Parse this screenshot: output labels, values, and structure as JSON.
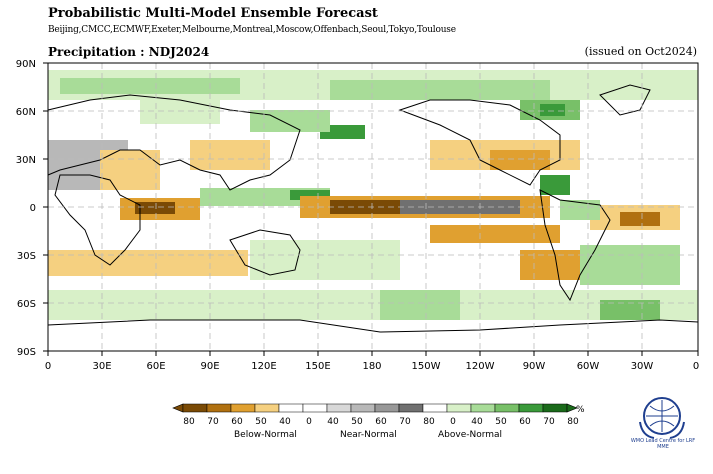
{
  "header": {
    "title": "Probabilistic Multi-Model Ensemble Forecast",
    "centres": "Beijing,CMCC,ECMWF,Exeter,Melbourne,Montreal,Moscow,Offenbach,Seoul,Tokyo,Toulouse",
    "variable_label": "Precipitation : NDJ2024",
    "issued_label": "(issued on Oct2024)"
  },
  "map": {
    "lat_labels": [
      "90N",
      "60N",
      "30N",
      "0",
      "30S",
      "60S",
      "90S"
    ],
    "lon_labels": [
      "0",
      "30E",
      "60E",
      "90E",
      "120E",
      "150E",
      "180",
      "150W",
      "120W",
      "90W",
      "60W",
      "30W",
      "0"
    ]
  },
  "legend": {
    "ticks": [
      "80",
      "70",
      "60",
      "50",
      "40",
      "0",
      "40",
      "50",
      "60",
      "70",
      "80",
      "0",
      "40",
      "50",
      "60",
      "70",
      "80"
    ],
    "colors": [
      "#7a4a05",
      "#b07010",
      "#e0a030",
      "#f5d080",
      "#ffffff",
      "#ffffff",
      "#d8d8d8",
      "#b8b8b8",
      "#989898",
      "#707070",
      "#ffffff",
      "#d8f0c8",
      "#a8dc98",
      "#78c068",
      "#3a9a3a",
      "#1a6a1a"
    ],
    "groups": {
      "below": "Below-Normal",
      "near": "Near-Normal",
      "above": "Above-Normal"
    },
    "unit": "%"
  },
  "logo": {
    "icon": "wmo-globe-emblem",
    "caption": "WMO Lead Centre for LRF MME"
  }
}
